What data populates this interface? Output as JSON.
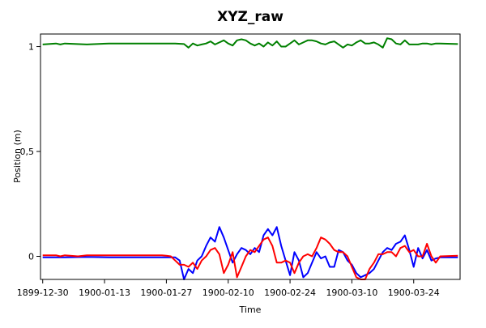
{
  "chart_data": {
    "type": "line",
    "title": "XYZ_raw",
    "xlabel": "Time",
    "ylabel": "Position (m)",
    "xlim": [
      -0.5,
      94.5
    ],
    "ylim": [
      -0.11,
      1.06
    ],
    "x_tick_values": [
      0,
      14,
      28,
      42,
      56,
      70,
      84
    ],
    "x_tick_labels": [
      "1899-12-30",
      "1900-01-13",
      "1900-01-27",
      "1900-02-10",
      "1900-02-24",
      "1900-03-10",
      "1900-03-24"
    ],
    "y_tick_values": [
      0,
      0.5,
      1
    ],
    "y_tick_labels": [
      "0",
      "0,5",
      "1"
    ],
    "grid": false,
    "legend": "none",
    "series": [
      {
        "color": "#0000ff",
        "x": [
          0,
          5,
          10,
          15,
          20,
          25,
          28,
          30,
          31,
          32,
          33,
          34,
          35,
          36,
          37,
          38,
          39,
          40,
          41,
          42,
          43,
          44,
          45,
          46,
          47,
          48,
          49,
          50,
          51,
          52,
          53,
          54,
          55,
          56,
          57,
          58,
          59,
          60,
          61,
          62,
          63,
          64,
          65,
          66,
          67,
          68,
          69,
          70,
          71,
          72,
          73,
          74,
          75,
          76,
          77,
          78,
          79,
          80,
          81,
          82,
          83,
          84,
          85,
          86,
          87,
          88,
          89,
          90,
          94
        ],
        "values": [
          -0.005,
          -0.005,
          -0.003,
          -0.005,
          -0.005,
          -0.005,
          -0.005,
          -0.005,
          -0.02,
          -0.11,
          -0.06,
          -0.08,
          -0.02,
          0.0,
          0.05,
          0.09,
          0.07,
          0.14,
          0.09,
          0.03,
          -0.03,
          0.01,
          0.04,
          0.03,
          0.01,
          0.04,
          0.02,
          0.1,
          0.13,
          0.1,
          0.14,
          0.05,
          -0.02,
          -0.09,
          0.02,
          -0.02,
          -0.1,
          -0.08,
          -0.03,
          0.02,
          -0.01,
          0.0,
          -0.05,
          -0.05,
          0.03,
          0.02,
          -0.02,
          -0.04,
          -0.08,
          -0.1,
          -0.09,
          -0.08,
          -0.06,
          -0.02,
          0.02,
          0.04,
          0.03,
          0.06,
          0.07,
          0.1,
          0.03,
          -0.05,
          0.04,
          -0.01,
          0.03,
          -0.02,
          -0.01,
          -0.005,
          -0.005
        ]
      },
      {
        "color": "#ff0000",
        "x": [
          0,
          3,
          4,
          5,
          8,
          10,
          15,
          20,
          25,
          27,
          28,
          29,
          30,
          31,
          32,
          33,
          34,
          35,
          36,
          37,
          38,
          39,
          40,
          41,
          42,
          43,
          44,
          45,
          46,
          47,
          48,
          49,
          50,
          51,
          52,
          53,
          54,
          55,
          56,
          57,
          58,
          59,
          60,
          61,
          62,
          63,
          64,
          65,
          66,
          67,
          68,
          69,
          70,
          71,
          72,
          73,
          74,
          75,
          76,
          77,
          78,
          79,
          80,
          81,
          82,
          83,
          84,
          85,
          86,
          87,
          88,
          89,
          90,
          94
        ],
        "values": [
          0.005,
          0.005,
          0.0,
          0.005,
          0.0,
          0.005,
          0.005,
          0.005,
          0.005,
          0.005,
          0.003,
          0.0,
          -0.02,
          -0.04,
          -0.04,
          -0.05,
          -0.03,
          -0.06,
          -0.02,
          0.0,
          0.03,
          0.04,
          0.01,
          -0.08,
          -0.04,
          0.02,
          -0.1,
          -0.05,
          0.0,
          0.03,
          0.02,
          0.05,
          0.08,
          0.09,
          0.05,
          -0.03,
          -0.03,
          -0.02,
          -0.03,
          -0.08,
          -0.03,
          0.0,
          0.01,
          0.0,
          0.04,
          0.09,
          0.08,
          0.06,
          0.03,
          0.02,
          0.02,
          0.0,
          -0.05,
          -0.1,
          -0.11,
          -0.11,
          -0.06,
          -0.03,
          0.01,
          0.01,
          0.02,
          0.02,
          0.0,
          0.04,
          0.05,
          0.02,
          0.03,
          0.0,
          0.0,
          0.06,
          0.0,
          -0.03,
          0.0,
          0.003
        ]
      },
      {
        "color": "#008000",
        "x": [
          0,
          3,
          4,
          5,
          10,
          15,
          20,
          25,
          30,
          32,
          33,
          34,
          35,
          36,
          37,
          38,
          39,
          40,
          41,
          42,
          43,
          44,
          45,
          46,
          47,
          48,
          49,
          50,
          51,
          52,
          53,
          54,
          55,
          56,
          57,
          58,
          59,
          60,
          61,
          62,
          63,
          64,
          65,
          66,
          67,
          68,
          69,
          70,
          71,
          72,
          73,
          74,
          75,
          76,
          77,
          78,
          79,
          80,
          81,
          82,
          83,
          84,
          85,
          86,
          87,
          88,
          89,
          90,
          94
        ],
        "values": [
          1.01,
          1.015,
          1.01,
          1.015,
          1.01,
          1.015,
          1.015,
          1.015,
          1.015,
          1.012,
          0.995,
          1.015,
          1.005,
          1.01,
          1.015,
          1.025,
          1.01,
          1.02,
          1.03,
          1.015,
          1.005,
          1.03,
          1.035,
          1.03,
          1.015,
          1.005,
          1.015,
          1.0,
          1.02,
          1.005,
          1.025,
          1.0,
          1.0,
          1.015,
          1.03,
          1.01,
          1.02,
          1.03,
          1.03,
          1.025,
          1.015,
          1.01,
          1.02,
          1.025,
          1.01,
          0.995,
          1.01,
          1.005,
          1.02,
          1.03,
          1.015,
          1.015,
          1.02,
          1.01,
          0.995,
          1.04,
          1.035,
          1.015,
          1.01,
          1.03,
          1.01,
          1.01,
          1.01,
          1.015,
          1.015,
          1.01,
          1.015,
          1.015,
          1.012
        ]
      }
    ]
  }
}
